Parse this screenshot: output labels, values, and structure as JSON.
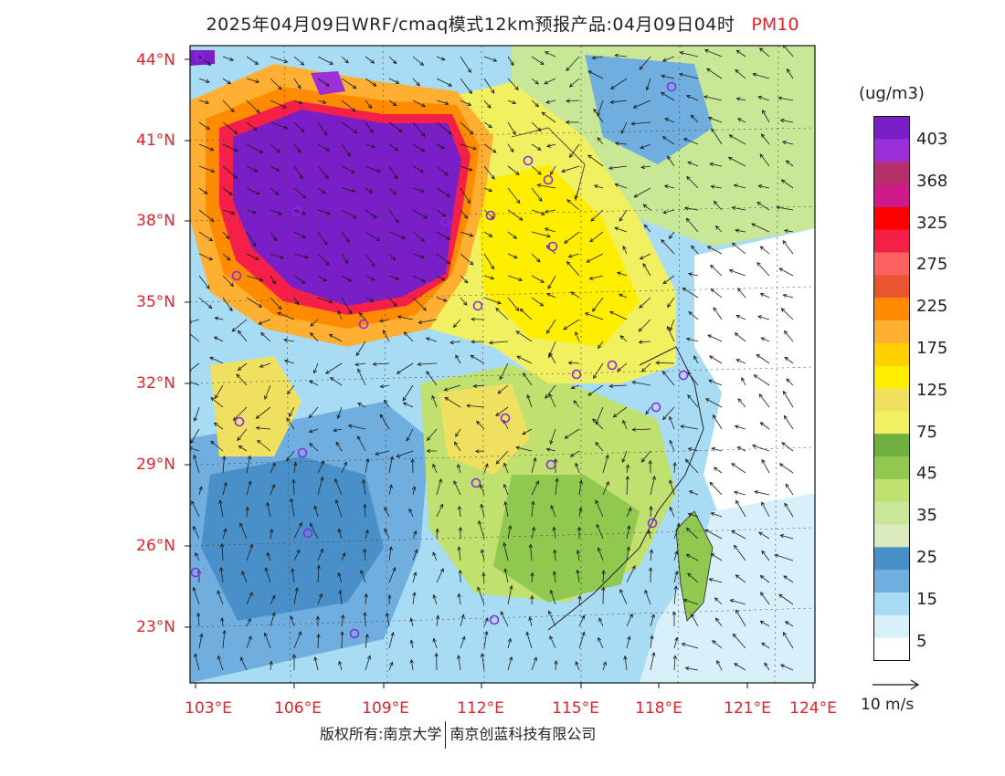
{
  "title": {
    "prefix": "2025年04月09日WRF/cmaq模式12km预报产品:04月09日04时",
    "variable": "PM10"
  },
  "map": {
    "lat_labels": [
      "44°N",
      "41°N",
      "38°N",
      "35°N",
      "32°N",
      "29°N",
      "26°N",
      "23°N"
    ],
    "lon_labels": [
      "103°E",
      "106°E",
      "109°E",
      "112°E",
      "115°E",
      "118°E",
      "121°E",
      "124°E"
    ],
    "station_marker_color": "#8a2be2",
    "wind_arrow_color": "#1a1a1a"
  },
  "colorbar": {
    "unit": "(ug/m3)",
    "colors": [
      "#7a1fc7",
      "#9b30d8",
      "#b5306a",
      "#cf1a8a",
      "#ff0000",
      "#f52048",
      "#ff6060",
      "#e85530",
      "#ff8c00",
      "#ffb033",
      "#ffd000",
      "#ffee00",
      "#f0e060",
      "#f0f060",
      "#70b040",
      "#90c850",
      "#c0e070",
      "#c8e898",
      "#dceac0",
      "#4a90c8",
      "#70aee0",
      "#a8dcf4",
      "#d8f0fa",
      "#ffffff"
    ],
    "labels": [
      "403",
      "368",
      "325",
      "275",
      "225",
      "175",
      "125",
      "75",
      "45",
      "35",
      "25",
      "15",
      "5"
    ]
  },
  "wind_reference": {
    "label": "10 m/s"
  },
  "footer": {
    "left": "版权所有:南京大学",
    "right": "南京创蓝科技有限公司"
  }
}
